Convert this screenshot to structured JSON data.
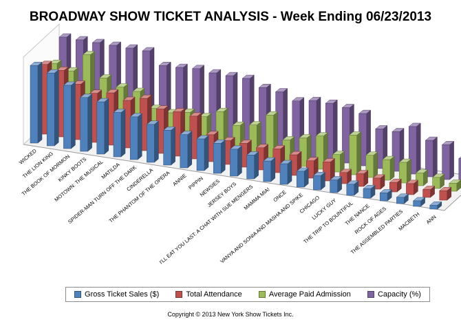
{
  "chart_data": {
    "type": "bar",
    "style": "3d-columns",
    "title": "BROADWAY SHOW TICKET ANALYSIS - Week Ending 06/23/2013",
    "xlabel": "",
    "ylabel": "",
    "ylim": [
      0,
      100
    ],
    "grid": false,
    "legend_position": "bottom",
    "categories": [
      "WICKED",
      "THE LION KING",
      "THE BOOK OF MORMON",
      "KINKY BOOTS",
      "MOTOWN: THE MUSICAL",
      "MATILDA",
      "SPIDER-MAN TURN OFF THE DARK",
      "CINDERELLA",
      "THE PHANTOM OF THE OPERA",
      "ANNIE",
      "PIPPIN",
      "NEWSIES",
      "JERSEY BOYS",
      "I'LL EAT YOU LAST: A CHAT WITH SUE MENGERS",
      "MAMMA MIA!",
      "ONCE",
      "VANYA AND SONIA AND MASHA AND SPIKE",
      "CHICAGO",
      "LUCKY GUY",
      "THE TRIP TO BOUNTIFUL",
      "THE NANCE",
      "ROCK OF AGES",
      "THE ASSEMBLED PARTIES",
      "MACBETH",
      "ANN"
    ],
    "series": [
      {
        "name": "Gross Ticket Sales ($)",
        "color": "#4f81bd",
        "values": [
          98,
          92,
          80,
          68,
          66,
          56,
          54,
          48,
          44,
          42,
          40,
          38,
          34,
          30,
          26,
          26,
          20,
          18,
          16,
          14,
          12,
          10,
          8,
          7,
          5
        ]
      },
      {
        "name": "Total Attendance",
        "color": "#c0504d",
        "values": [
          88,
          84,
          70,
          62,
          66,
          60,
          66,
          56,
          56,
          54,
          34,
          30,
          30,
          28,
          30,
          26,
          22,
          24,
          14,
          16,
          14,
          12,
          14,
          10,
          12
        ]
      },
      {
        "name": "Average Paid Admission",
        "color": "#9bbb59",
        "values": [
          78,
          72,
          96,
          70,
          62,
          60,
          42,
          40,
          44,
          42,
          52,
          38,
          42,
          58,
          30,
          36,
          42,
          22,
          50,
          28,
          26,
          26,
          16,
          14,
          10
        ]
      },
      {
        "name": "Capacity (%)",
        "color": "#8064a2",
        "values": [
          100,
          100,
          100,
          100,
          100,
          100,
          85,
          86,
          88,
          86,
          86,
          86,
          78,
          76,
          68,
          72,
          72,
          70,
          66,
          50,
          50,
          60,
          46,
          44,
          30
        ]
      }
    ]
  },
  "footer": {
    "copyright": "Copyright © 2013 New York Show Tickets Inc."
  }
}
